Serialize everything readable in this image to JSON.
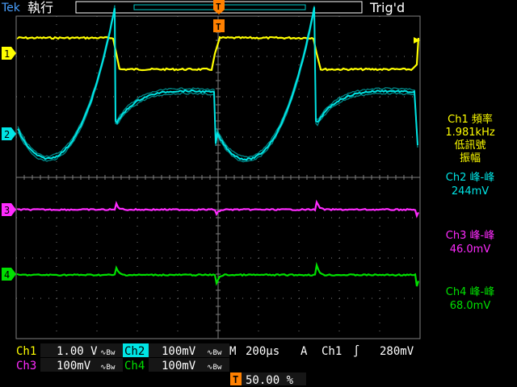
{
  "header": {
    "brand": "Tek",
    "run_state": "執行",
    "trigger_status": "Trig'd",
    "trigger_marker": "T"
  },
  "channels": [
    {
      "id": "ch1",
      "marker": "1",
      "color": "#ffff00"
    },
    {
      "id": "ch2",
      "marker": "2",
      "color": "#00e5e5"
    },
    {
      "id": "ch3",
      "marker": "3",
      "color": "#ff2bff"
    },
    {
      "id": "ch4",
      "marker": "4",
      "color": "#00e000"
    }
  ],
  "measurements": [
    {
      "lines": [
        "Ch1 頻率",
        "1.981kHz",
        "低訊號",
        "振幅"
      ],
      "color": "#ffff00"
    },
    {
      "lines": [
        "Ch2 峰-峰",
        "244mV"
      ],
      "color": "#00e5e5"
    },
    {
      "lines": [
        "Ch3 峰-峰",
        "46.0mV"
      ],
      "color": "#ff2bff"
    },
    {
      "lines": [
        "Ch4 峰-峰",
        "68.0mV"
      ],
      "color": "#00e000"
    }
  ],
  "status_bar": {
    "ch1_label": "Ch1",
    "ch1_scale": "1.00 V",
    "ch2_label": "Ch2",
    "ch2_scale": "100mV",
    "ch3_label": "Ch3",
    "ch3_scale": "100mV",
    "ch4_label": "Ch4",
    "ch4_scale": "100mV",
    "bw_symbol": "∿Bw",
    "time_label": "M",
    "time_scale": "200µs",
    "trigger_mode": "A",
    "trigger_source": "Ch1",
    "trigger_slope": "∫",
    "trigger_level": "280mV",
    "trigger_pos_marker": "T",
    "trigger_position": "50.00 %"
  },
  "colors": {
    "graticule": "#7f7f7f",
    "ch1": "#ffff00",
    "ch2": "#00e5e5",
    "ch3": "#ff2bff",
    "ch4": "#00e000",
    "trigger_marker": "#ff8000"
  }
}
